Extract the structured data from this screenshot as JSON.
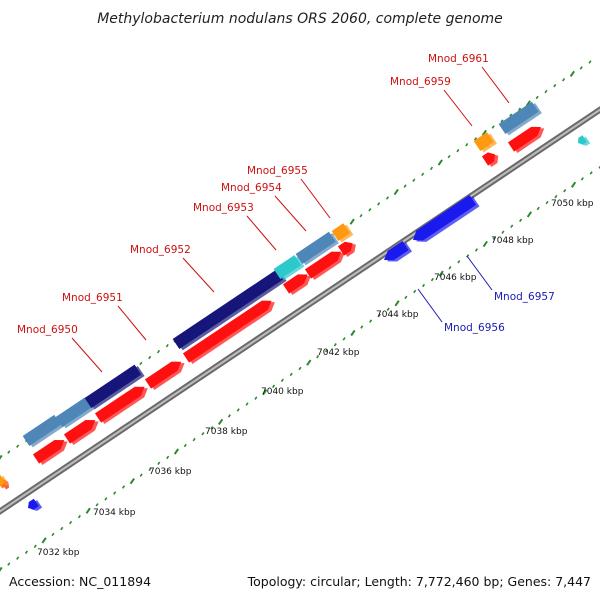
{
  "title": "Methylobacterium nodulans ORS 2060, complete genome",
  "footer": {
    "accession": "Accession: NC_011894",
    "stats": "Topology: circular; Length: 7,772,460 bp; Genes: 7,447"
  },
  "colors": {
    "backbone": "#7f7f7f",
    "tick": "#2a8a2a",
    "label_red": "#cc1111",
    "label_blue": "#1a1ab0",
    "forward_red": "#ff1010",
    "reverse_blue": "#1a1aee",
    "navy": "#15157a",
    "steelblue": "#4f86b8",
    "cyan": "#2cc8cc",
    "orange": "#ff9910"
  },
  "kbp_ticks": [
    "7032 kbp",
    "7034 kbp",
    "7036 kbp",
    "7038 kbp",
    "7040 kbp",
    "7042 kbp",
    "7044 kbp",
    "7046 kbp",
    "7048 kbp",
    "7050 kbp"
  ],
  "gene_labels": [
    {
      "name": "Mnod_6950",
      "strand": "forward"
    },
    {
      "name": "Mnod_6951",
      "strand": "forward"
    },
    {
      "name": "Mnod_6952",
      "strand": "forward"
    },
    {
      "name": "Mnod_6953",
      "strand": "forward"
    },
    {
      "name": "Mnod_6954",
      "strand": "forward"
    },
    {
      "name": "Mnod_6955",
      "strand": "forward"
    },
    {
      "name": "Mnod_6959",
      "strand": "forward"
    },
    {
      "name": "Mnod_6961",
      "strand": "forward"
    },
    {
      "name": "Mnod_6956",
      "strand": "reverse"
    },
    {
      "name": "Mnod_6957",
      "strand": "reverse"
    }
  ]
}
